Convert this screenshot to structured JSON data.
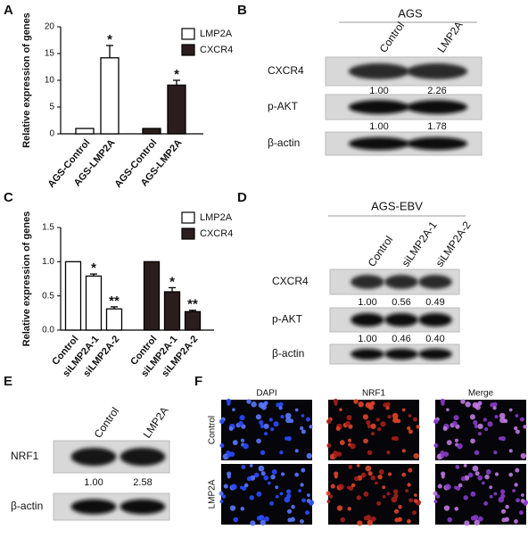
{
  "letters": [
    "A",
    "B",
    "C",
    "D",
    "E",
    "F"
  ],
  "chart_data": [
    {
      "type": "bar",
      "ylabel": "Relative expression of genes",
      "categories": [
        "AGS-Control",
        "AGS-LMP2A",
        "AGS-Control",
        "AGS-LMP2A"
      ],
      "series": [
        {
          "name": "LMP2A",
          "color": "#ffffff",
          "values": [
            1,
            14.2,
            null,
            null
          ],
          "errors": [
            0,
            2.3,
            null,
            null
          ],
          "annotations": [
            null,
            "*",
            null,
            null
          ]
        },
        {
          "name": "CXCR4",
          "color": "#2b1d1d",
          "values": [
            null,
            null,
            1,
            9.1
          ],
          "errors": [
            null,
            null,
            0,
            0.9
          ],
          "annotations": [
            null,
            null,
            null,
            "*"
          ]
        }
      ],
      "ylim": [
        0,
        20
      ],
      "yticks": [
        0,
        5,
        10,
        15,
        20
      ]
    },
    {
      "type": "bar",
      "ylabel": "Relative expression of genes",
      "categories": [
        "Control",
        "siLMP2A-1",
        "siLMP2A-2",
        "Control",
        "siLMP2A-1",
        "siLMP2A-2"
      ],
      "series": [
        {
          "name": "LMP2A",
          "color": "#ffffff",
          "values": [
            1,
            0.79,
            0.31,
            null,
            null,
            null
          ],
          "errors": [
            0,
            0.03,
            0.03,
            null,
            null,
            null
          ],
          "annotations": [
            null,
            "*",
            "**",
            null,
            null,
            null
          ]
        },
        {
          "name": "CXCR4",
          "color": "#2b1d1d",
          "values": [
            null,
            null,
            null,
            1,
            0.56,
            0.27
          ],
          "errors": [
            null,
            null,
            null,
            0,
            0.06,
            0.02
          ],
          "annotations": [
            null,
            null,
            null,
            null,
            "*",
            "**"
          ]
        }
      ],
      "ylim": [
        0,
        1.5
      ],
      "yticks": [
        {
          "value": 0,
          "label": "0.0"
        },
        {
          "value": 0.5,
          "label": "0.5"
        },
        {
          "value": 1,
          "label": "1.0"
        },
        {
          "value": 1.5,
          "label": "1.5"
        }
      ]
    }
  ],
  "blots": [
    {
      "title": "AGS",
      "lanes": [
        "Control",
        "LMP2A"
      ],
      "rows": [
        {
          "name": "CXCR4",
          "values": [
            "1.00",
            "2.26"
          ]
        },
        {
          "name": "p-AKT",
          "values": [
            "1.00",
            "1.78"
          ]
        },
        {
          "name": "β-actin"
        }
      ]
    },
    {
      "title": "AGS-EBV",
      "lanes": [
        "Control",
        "siLMP2A-1",
        "siLMP2A-2"
      ],
      "rows": [
        {
          "name": "CXCR4",
          "values": [
            "1.00",
            "0.56",
            "0.49"
          ]
        },
        {
          "name": "p-AKT",
          "values": [
            "1.00",
            "0.46",
            "0.40"
          ]
        },
        {
          "name": "β-actin"
        }
      ]
    },
    {
      "lanes": [
        "Control",
        "LMP2A"
      ],
      "rows": [
        {
          "name": "NRF1",
          "values": [
            "1.00",
            "2.58"
          ]
        },
        {
          "name": "β-actin"
        }
      ]
    }
  ],
  "microscopy": {
    "columns": [
      "DAPI",
      "NRF1",
      "Merge"
    ],
    "rows": [
      "Control",
      "LMP2A"
    ]
  }
}
